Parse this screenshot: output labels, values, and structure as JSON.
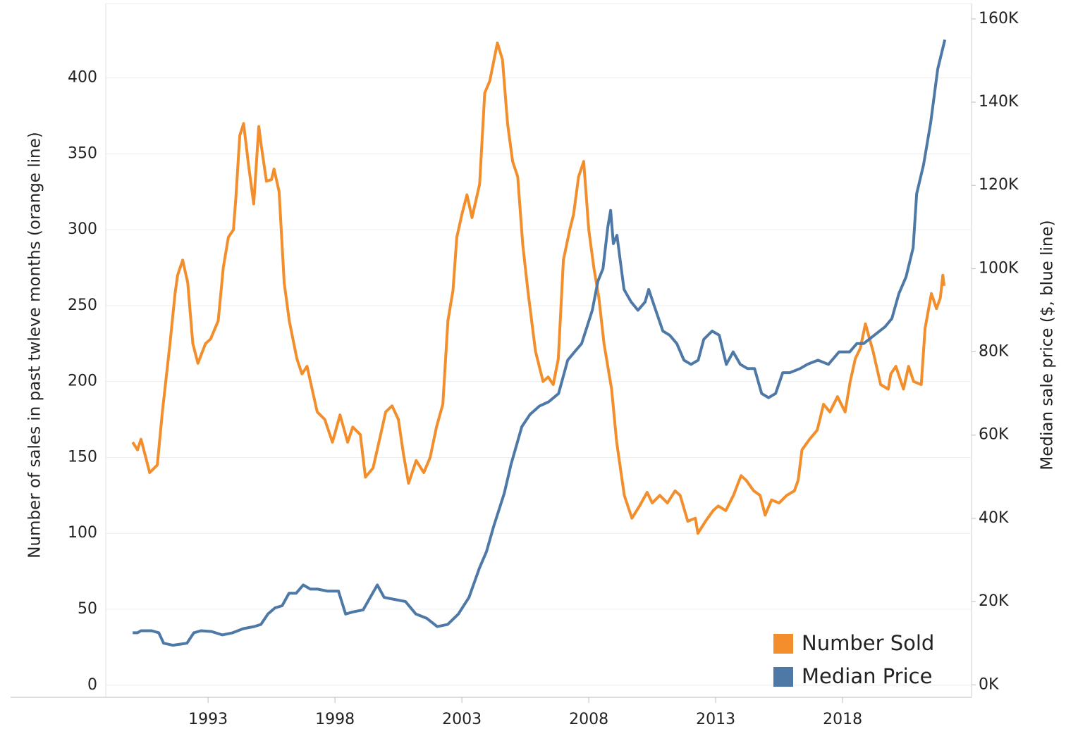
{
  "chart_data": {
    "type": "line",
    "y_label": "Number of sales in past twleve months (orange line)",
    "y2_label": "Median sale price ($, blue line)",
    "xlim": [
      1988.97,
      2023.08
    ],
    "xticks": [
      1993,
      1998,
      2003,
      2008,
      2013,
      2018
    ],
    "ylim": [
      -8,
      449
    ],
    "yticks": [
      0,
      50,
      100,
      150,
      200,
      250,
      300,
      350,
      400
    ],
    "y2lim": [
      -3000,
      163700
    ],
    "y2ticks": [
      {
        "value": 0,
        "label": "0K"
      },
      {
        "value": 20000,
        "label": "20K"
      },
      {
        "value": 40000,
        "label": "40K"
      },
      {
        "value": 60000,
        "label": "60K"
      },
      {
        "value": 80000,
        "label": "80K"
      },
      {
        "value": 100000,
        "label": "100K"
      },
      {
        "value": 120000,
        "label": "120K"
      },
      {
        "value": 140000,
        "label": "140K"
      },
      {
        "value": 160000,
        "label": "160K"
      }
    ],
    "grid": true,
    "legend": "lower right",
    "series": [
      {
        "name": "Number Sold",
        "color": "#f28e2b",
        "x": [
          1990.03,
          1990.22,
          1990.36,
          1990.5,
          1990.7,
          1991.0,
          1991.2,
          1991.5,
          1991.7,
          1991.8,
          1992.0,
          1992.2,
          1992.4,
          1992.6,
          1992.9,
          1993.1,
          1993.4,
          1993.6,
          1993.8,
          1994.0,
          1994.1,
          1994.25,
          1994.4,
          1994.6,
          1994.8,
          1995.0,
          1995.1,
          1995.3,
          1995.5,
          1995.6,
          1995.8,
          1996.0,
          1996.2,
          1996.5,
          1996.7,
          1996.9,
          1997.1,
          1997.3,
          1997.6,
          1997.9,
          1998.2,
          1998.5,
          1998.7,
          1999.0,
          1999.2,
          1999.5,
          1999.8,
          2000.0,
          2000.25,
          2000.5,
          2000.7,
          2000.9,
          2001.2,
          2001.5,
          2001.75,
          2002.0,
          2002.25,
          2002.45,
          2002.65,
          2002.8,
          2003.0,
          2003.2,
          2003.4,
          2003.7,
          2003.9,
          2004.1,
          2004.4,
          2004.6,
          2004.8,
          2005.0,
          2005.2,
          2005.4,
          2005.6,
          2005.9,
          2006.2,
          2006.4,
          2006.6,
          2006.8,
          2007.0,
          2007.25,
          2007.4,
          2007.6,
          2007.8,
          2008.0,
          2008.2,
          2008.4,
          2008.6,
          2008.9,
          2009.1,
          2009.4,
          2009.7,
          2010.0,
          2010.3,
          2010.5,
          2010.8,
          2011.1,
          2011.4,
          2011.6,
          2011.9,
          2012.2,
          2012.3,
          2012.6,
          2012.9,
          2013.1,
          2013.4,
          2013.7,
          2014.0,
          2014.2,
          2014.5,
          2014.75,
          2014.95,
          2015.2,
          2015.5,
          2015.8,
          2016.1,
          2016.25,
          2016.4,
          2016.7,
          2017.0,
          2017.25,
          2017.5,
          2017.8,
          2018.1,
          2018.3,
          2018.5,
          2018.7,
          2018.9,
          2019.2,
          2019.5,
          2019.8,
          2019.9,
          2020.1,
          2020.4,
          2020.6,
          2020.8,
          2021.1,
          2021.25,
          2021.5,
          2021.7,
          2021.85,
          2021.95,
          2022.0
        ],
        "values": [
          160,
          155,
          162,
          153,
          140,
          145,
          180,
          225,
          258,
          270,
          280,
          265,
          225,
          212,
          225,
          228,
          240,
          275,
          295,
          300,
          322,
          362,
          370,
          342,
          317,
          368,
          355,
          332,
          333,
          340,
          325,
          265,
          240,
          215,
          205,
          210,
          195,
          180,
          175,
          160,
          178,
          160,
          170,
          165,
          137,
          143,
          165,
          180,
          184,
          175,
          152,
          133,
          148,
          140,
          150,
          170,
          185,
          240,
          260,
          295,
          310,
          323,
          308,
          330,
          390,
          398,
          423,
          412,
          370,
          345,
          335,
          290,
          260,
          220,
          200,
          203,
          198,
          215,
          280,
          300,
          310,
          335,
          345,
          300,
          275,
          255,
          225,
          195,
          160,
          125,
          110,
          118,
          127,
          120,
          125,
          120,
          128,
          125,
          108,
          110,
          100,
          108,
          115,
          118,
          115,
          125,
          138,
          135,
          128,
          125,
          112,
          122,
          120,
          125,
          128,
          135,
          155,
          162,
          168,
          185,
          180,
          190,
          180,
          200,
          215,
          222,
          238,
          220,
          198,
          195,
          205,
          210,
          195,
          210,
          200,
          198,
          235,
          258,
          248,
          255,
          270,
          263
        ]
      },
      {
        "name": "Median Price",
        "color": "#4e79a7",
        "axis": "y2",
        "x": [
          1990.03,
          1990.22,
          1990.36,
          1990.78,
          1991.06,
          1991.25,
          1991.61,
          1992.17,
          1992.44,
          1992.72,
          1993.14,
          1993.56,
          1993.97,
          1994.39,
          1994.81,
          1995.08,
          1995.36,
          1995.64,
          1995.92,
          1996.19,
          1996.47,
          1996.75,
          1997.03,
          1997.31,
          1997.72,
          1998.14,
          1998.42,
          1998.69,
          1999.11,
          1999.39,
          1999.67,
          1999.94,
          2000.36,
          2000.78,
          2001.19,
          2001.61,
          2002.03,
          2002.44,
          2002.86,
          2003.28,
          2003.69,
          2003.97,
          2004.25,
          2004.67,
          2004.94,
          2005.36,
          2005.69,
          2006.06,
          2006.42,
          2006.81,
          2007.17,
          2007.44,
          2007.72,
          2008.14,
          2008.36,
          2008.56,
          2008.75,
          2008.86,
          2008.97,
          2009.11,
          2009.39,
          2009.67,
          2009.94,
          2010.22,
          2010.36,
          2010.64,
          2010.92,
          2011.19,
          2011.47,
          2011.75,
          2012.03,
          2012.31,
          2012.53,
          2012.86,
          2013.14,
          2013.42,
          2013.69,
          2013.97,
          2014.25,
          2014.53,
          2014.81,
          2015.08,
          2015.36,
          2015.64,
          2015.92,
          2016.33,
          2016.61,
          2017.03,
          2017.44,
          2017.86,
          2018.28,
          2018.56,
          2018.83,
          2019.25,
          2019.67,
          2019.94,
          2020.22,
          2020.5,
          2020.78,
          2020.92,
          2021.19,
          2021.47,
          2021.75,
          2022.03
        ],
        "values": [
          12500,
          12500,
          13000,
          13000,
          12500,
          10000,
          9500,
          10000,
          12500,
          13000,
          12800,
          12000,
          12500,
          13500,
          14000,
          14500,
          17000,
          18500,
          19000,
          22000,
          22000,
          24000,
          23000,
          23000,
          22500,
          22500,
          17000,
          17500,
          18000,
          21000,
          24000,
          21000,
          20500,
          20000,
          17000,
          16000,
          14000,
          14500,
          17000,
          21000,
          28000,
          32000,
          38000,
          46000,
          53000,
          62000,
          65000,
          67000,
          68000,
          70000,
          78000,
          80000,
          82000,
          90000,
          97000,
          100000,
          110000,
          114000,
          106000,
          108000,
          95000,
          92000,
          90000,
          92000,
          95000,
          90000,
          85000,
          84000,
          82000,
          78000,
          77000,
          78000,
          83000,
          85000,
          84000,
          77000,
          80000,
          77000,
          76000,
          76000,
          70000,
          69000,
          70000,
          75000,
          75000,
          76000,
          77000,
          78000,
          77000,
          80000,
          80000,
          82000,
          82000,
          84000,
          86000,
          88000,
          94000,
          98000,
          105000,
          118000,
          125000,
          135000,
          148000,
          155000
        ]
      }
    ]
  }
}
